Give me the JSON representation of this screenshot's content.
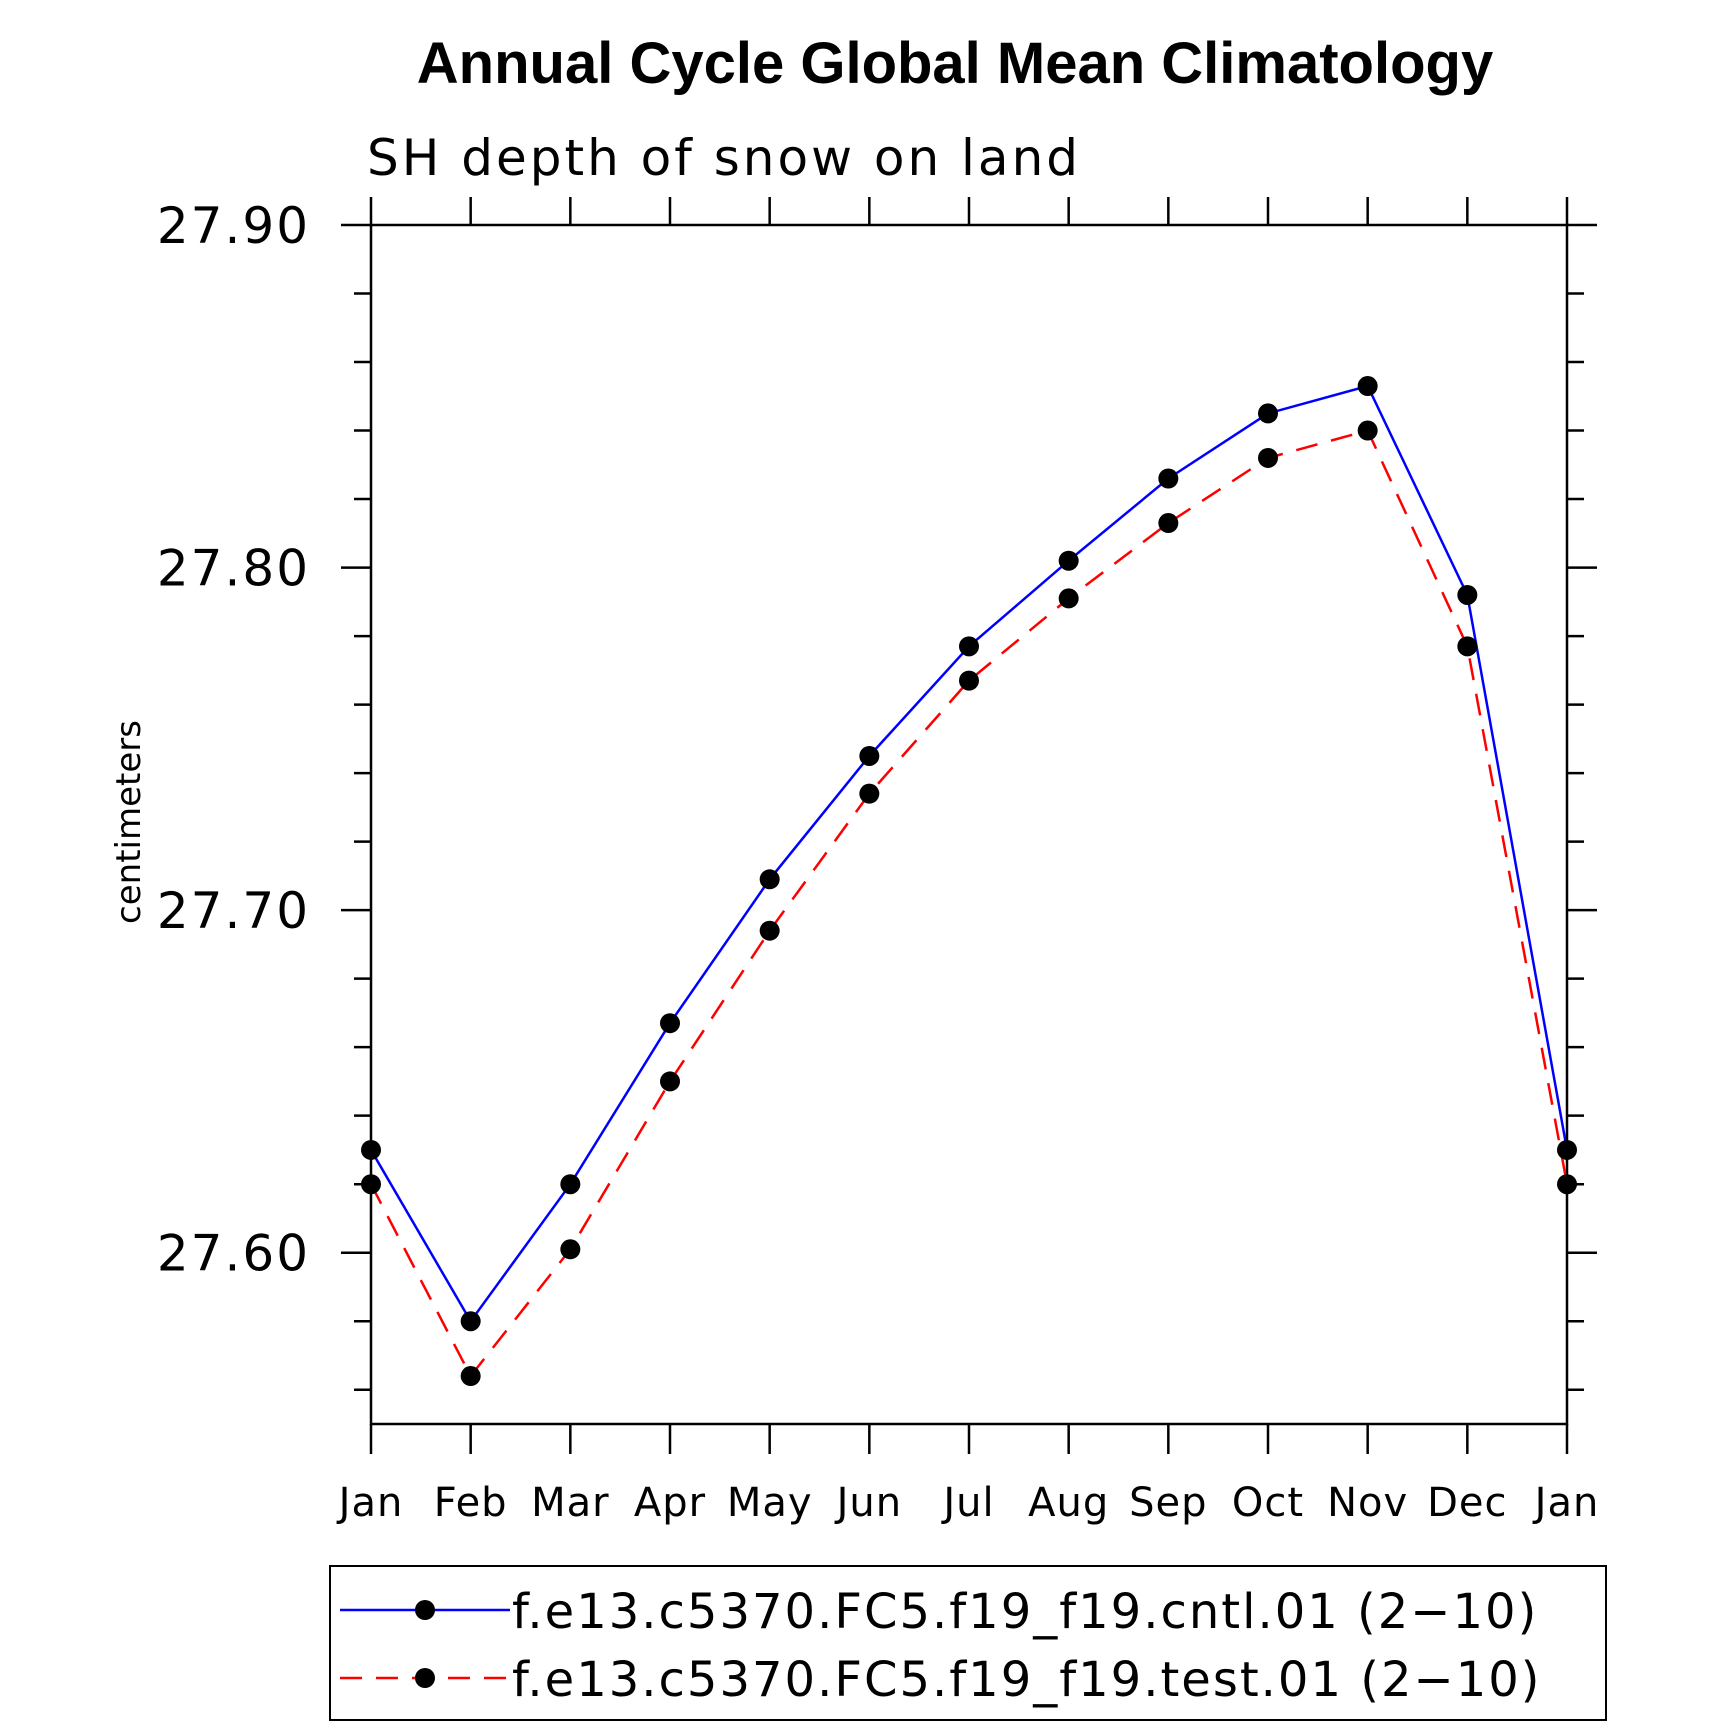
{
  "chart_data": {
    "type": "line",
    "title": "Annual Cycle Global Mean Climatology",
    "subtitle": "SH depth of snow on land",
    "ylabel": "centimeters",
    "xlabel": "",
    "categories": [
      "Jan",
      "Feb",
      "Mar",
      "Apr",
      "May",
      "Jun",
      "Jul",
      "Aug",
      "Sep",
      "Oct",
      "Nov",
      "Dec",
      "Jan"
    ],
    "ylim": [
      27.55,
      27.9
    ],
    "yticks": [
      "27.90",
      "27.80",
      "27.70",
      "27.60"
    ],
    "series": [
      {
        "name": "f.e13.c5370.FC5.f19_f19.cntl.01 (2−10)",
        "color": "#0000ff",
        "style": "solid",
        "values": [
          27.63,
          27.58,
          27.62,
          27.667,
          27.709,
          27.745,
          27.777,
          27.802,
          27.826,
          27.845,
          27.853,
          27.792,
          27.63
        ]
      },
      {
        "name": "f.e13.c5370.FC5.f19_f19.test.01 (2−10)",
        "color": "#ff0000",
        "style": "dashed",
        "values": [
          27.62,
          27.564,
          27.601,
          27.65,
          27.694,
          27.734,
          27.767,
          27.791,
          27.813,
          27.832,
          27.84,
          27.777,
          27.62
        ]
      }
    ],
    "legend_position": "bottom"
  }
}
